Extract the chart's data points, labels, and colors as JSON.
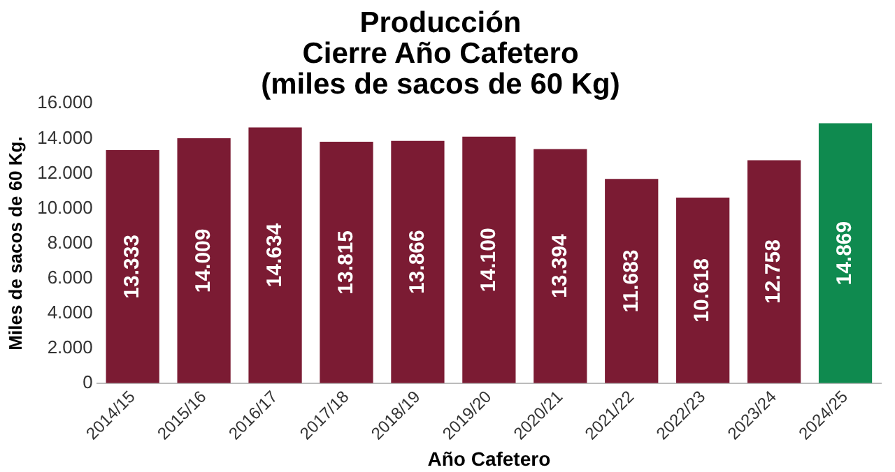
{
  "chart_data": {
    "type": "bar",
    "title": [
      "Producción",
      "Cierre Año Cafetero",
      "(miles de sacos de 60 Kg)"
    ],
    "xlabel": "Año Cafetero",
    "ylabel": "Miles de sacos de 60 Kg.",
    "categories": [
      "2014/15",
      "2015/16",
      "2016/17",
      "2017/18",
      "2018/19",
      "2019/20",
      "2020/21",
      "2021/22",
      "2022/23",
      "2023/24",
      "2024/25"
    ],
    "values": [
      13333,
      14009,
      14634,
      13815,
      13866,
      14100,
      13394,
      11683,
      10618,
      12758,
      14869
    ],
    "colors": [
      "#7b1b33",
      "#7b1b33",
      "#7b1b33",
      "#7b1b33",
      "#7b1b33",
      "#7b1b33",
      "#7b1b33",
      "#7b1b33",
      "#7b1b33",
      "#7b1b33",
      "#0f8a4f"
    ],
    "value_labels": [
      "13.333",
      "14.009",
      "14.634",
      "13.815",
      "13.866",
      "14.100",
      "13.394",
      "11.683",
      "10.618",
      "12.758",
      "14.869"
    ],
    "ylim": [
      0,
      16000
    ],
    "yticks": [
      {
        "value": 0,
        "label": "0"
      },
      {
        "value": 2000,
        "label": "2.000"
      },
      {
        "value": 4000,
        "label": "4.000"
      },
      {
        "value": 6000,
        "label": "6.000"
      },
      {
        "value": 8000,
        "label": "8.000"
      },
      {
        "value": 10000,
        "label": "10.000"
      },
      {
        "value": 12000,
        "label": "12.000"
      },
      {
        "value": 14000,
        "label": "14.000"
      },
      {
        "value": 16000,
        "label": "16.000"
      }
    ],
    "grid": false,
    "legend": false
  }
}
